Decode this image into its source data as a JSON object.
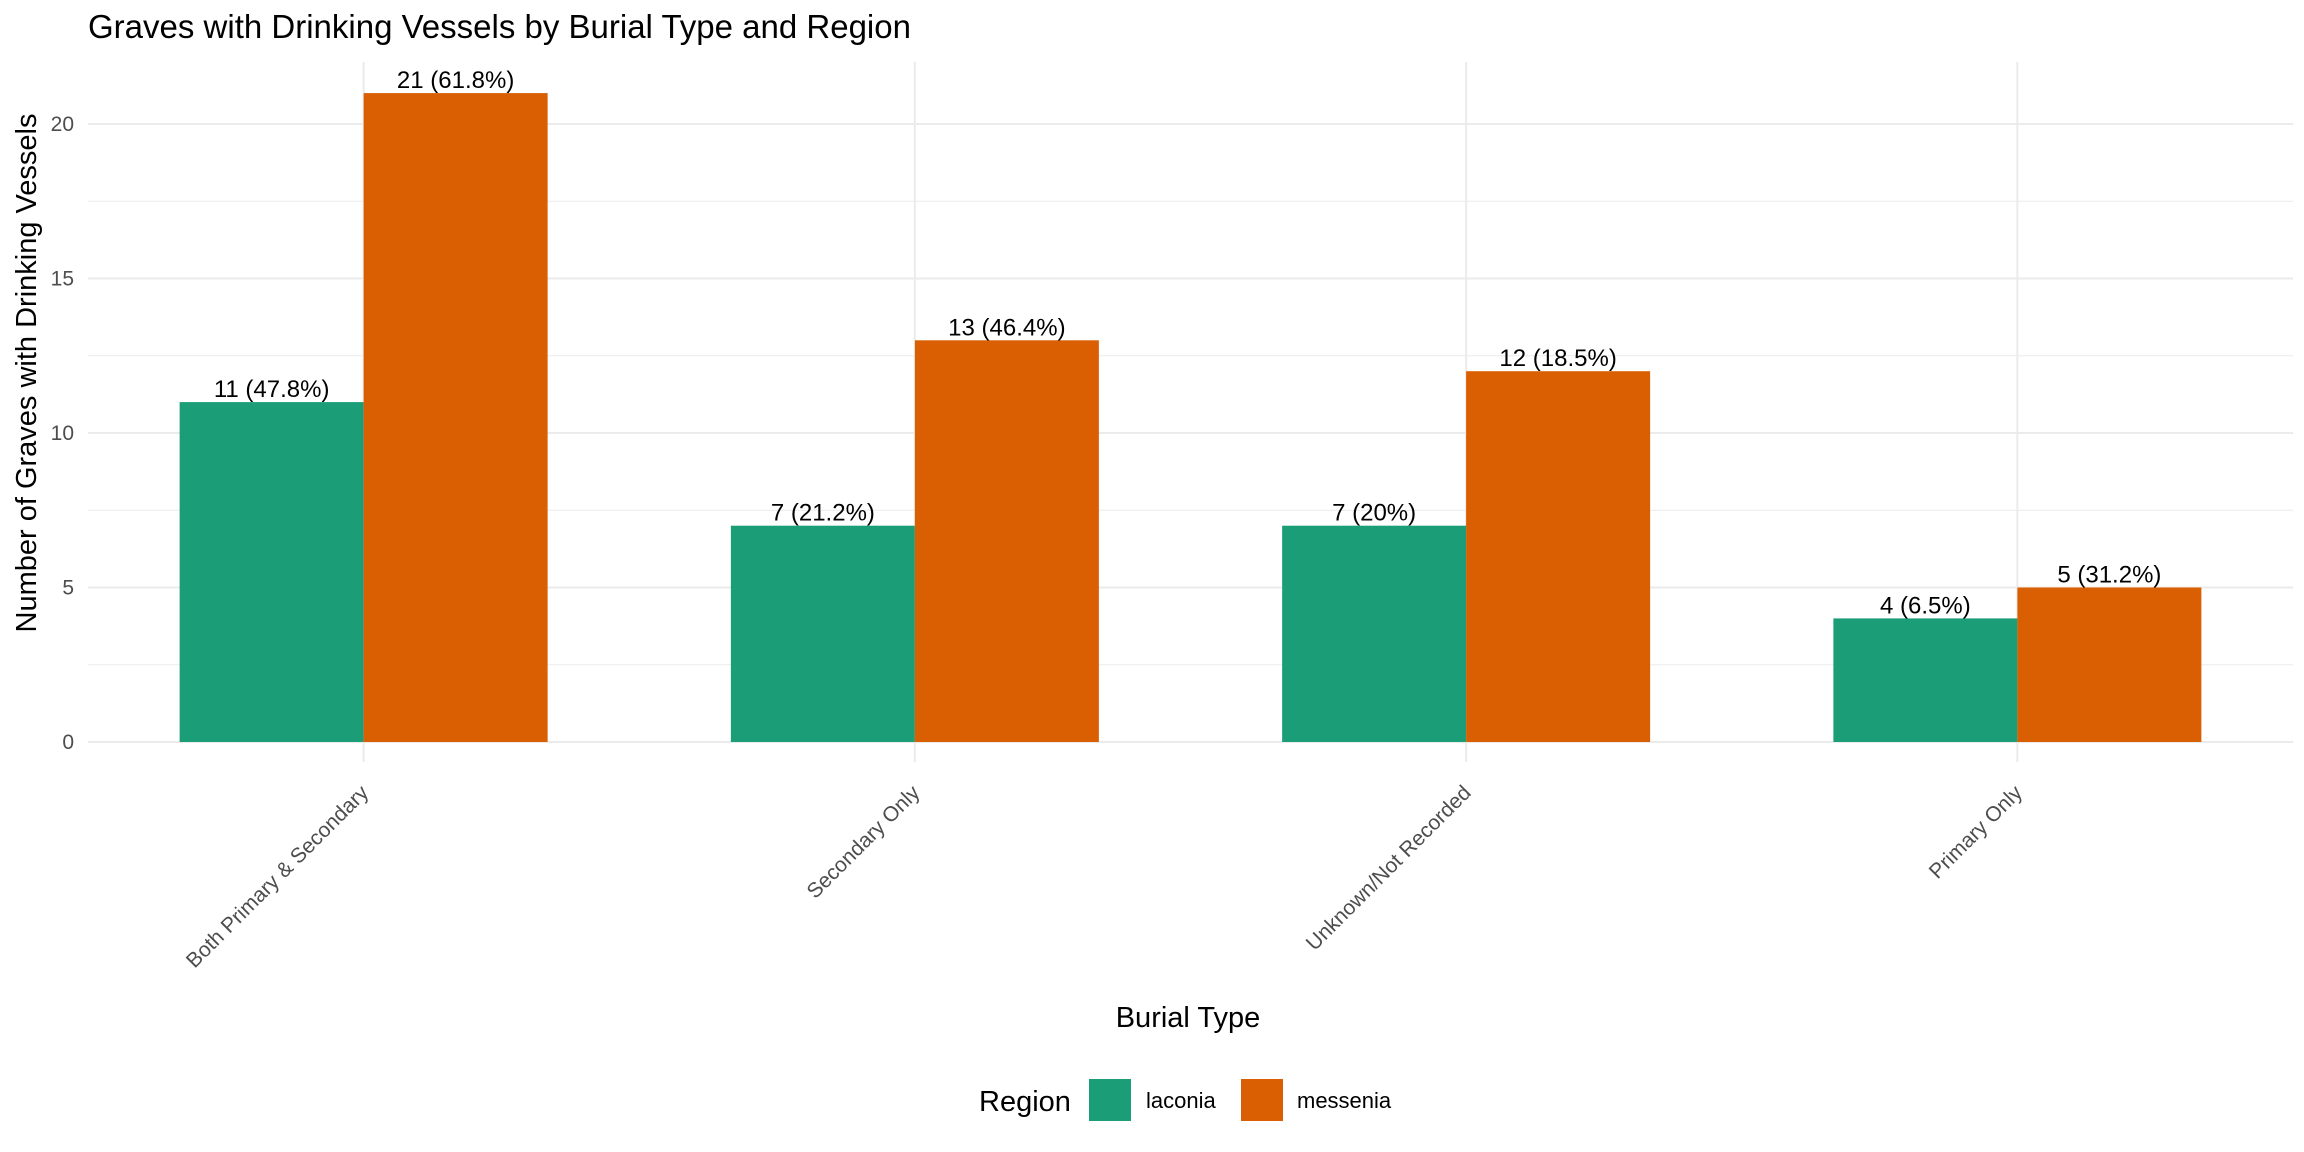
{
  "chart_data": {
    "type": "bar",
    "title": "Graves with Drinking Vessels by Burial Type and Region",
    "xlabel": "Burial Type",
    "ylabel": "Number of Graves with Drinking Vessels",
    "categories": [
      "Both Primary & Secondary",
      "Secondary Only",
      "Unknown/Not Recorded",
      "Primary Only"
    ],
    "series": [
      {
        "name": "laconia",
        "color": "#1b9e77",
        "values": [
          11,
          7,
          7,
          4
        ],
        "labels": [
          "11 (47.8%)",
          "7 (21.2%)",
          "7 (20%)",
          "4 (6.5%)"
        ]
      },
      {
        "name": "messenia",
        "color": "#d95f02",
        "values": [
          21,
          13,
          12,
          5
        ],
        "labels": [
          "21 (61.8%)",
          "13 (46.4%)",
          "12 (18.5%)",
          "5 (31.2%)"
        ]
      }
    ],
    "ylim": [
      0,
      22
    ],
    "yticks": [
      0,
      5,
      10,
      15,
      20
    ],
    "grid": true,
    "legend": {
      "title": "Region",
      "position": "bottom"
    }
  }
}
